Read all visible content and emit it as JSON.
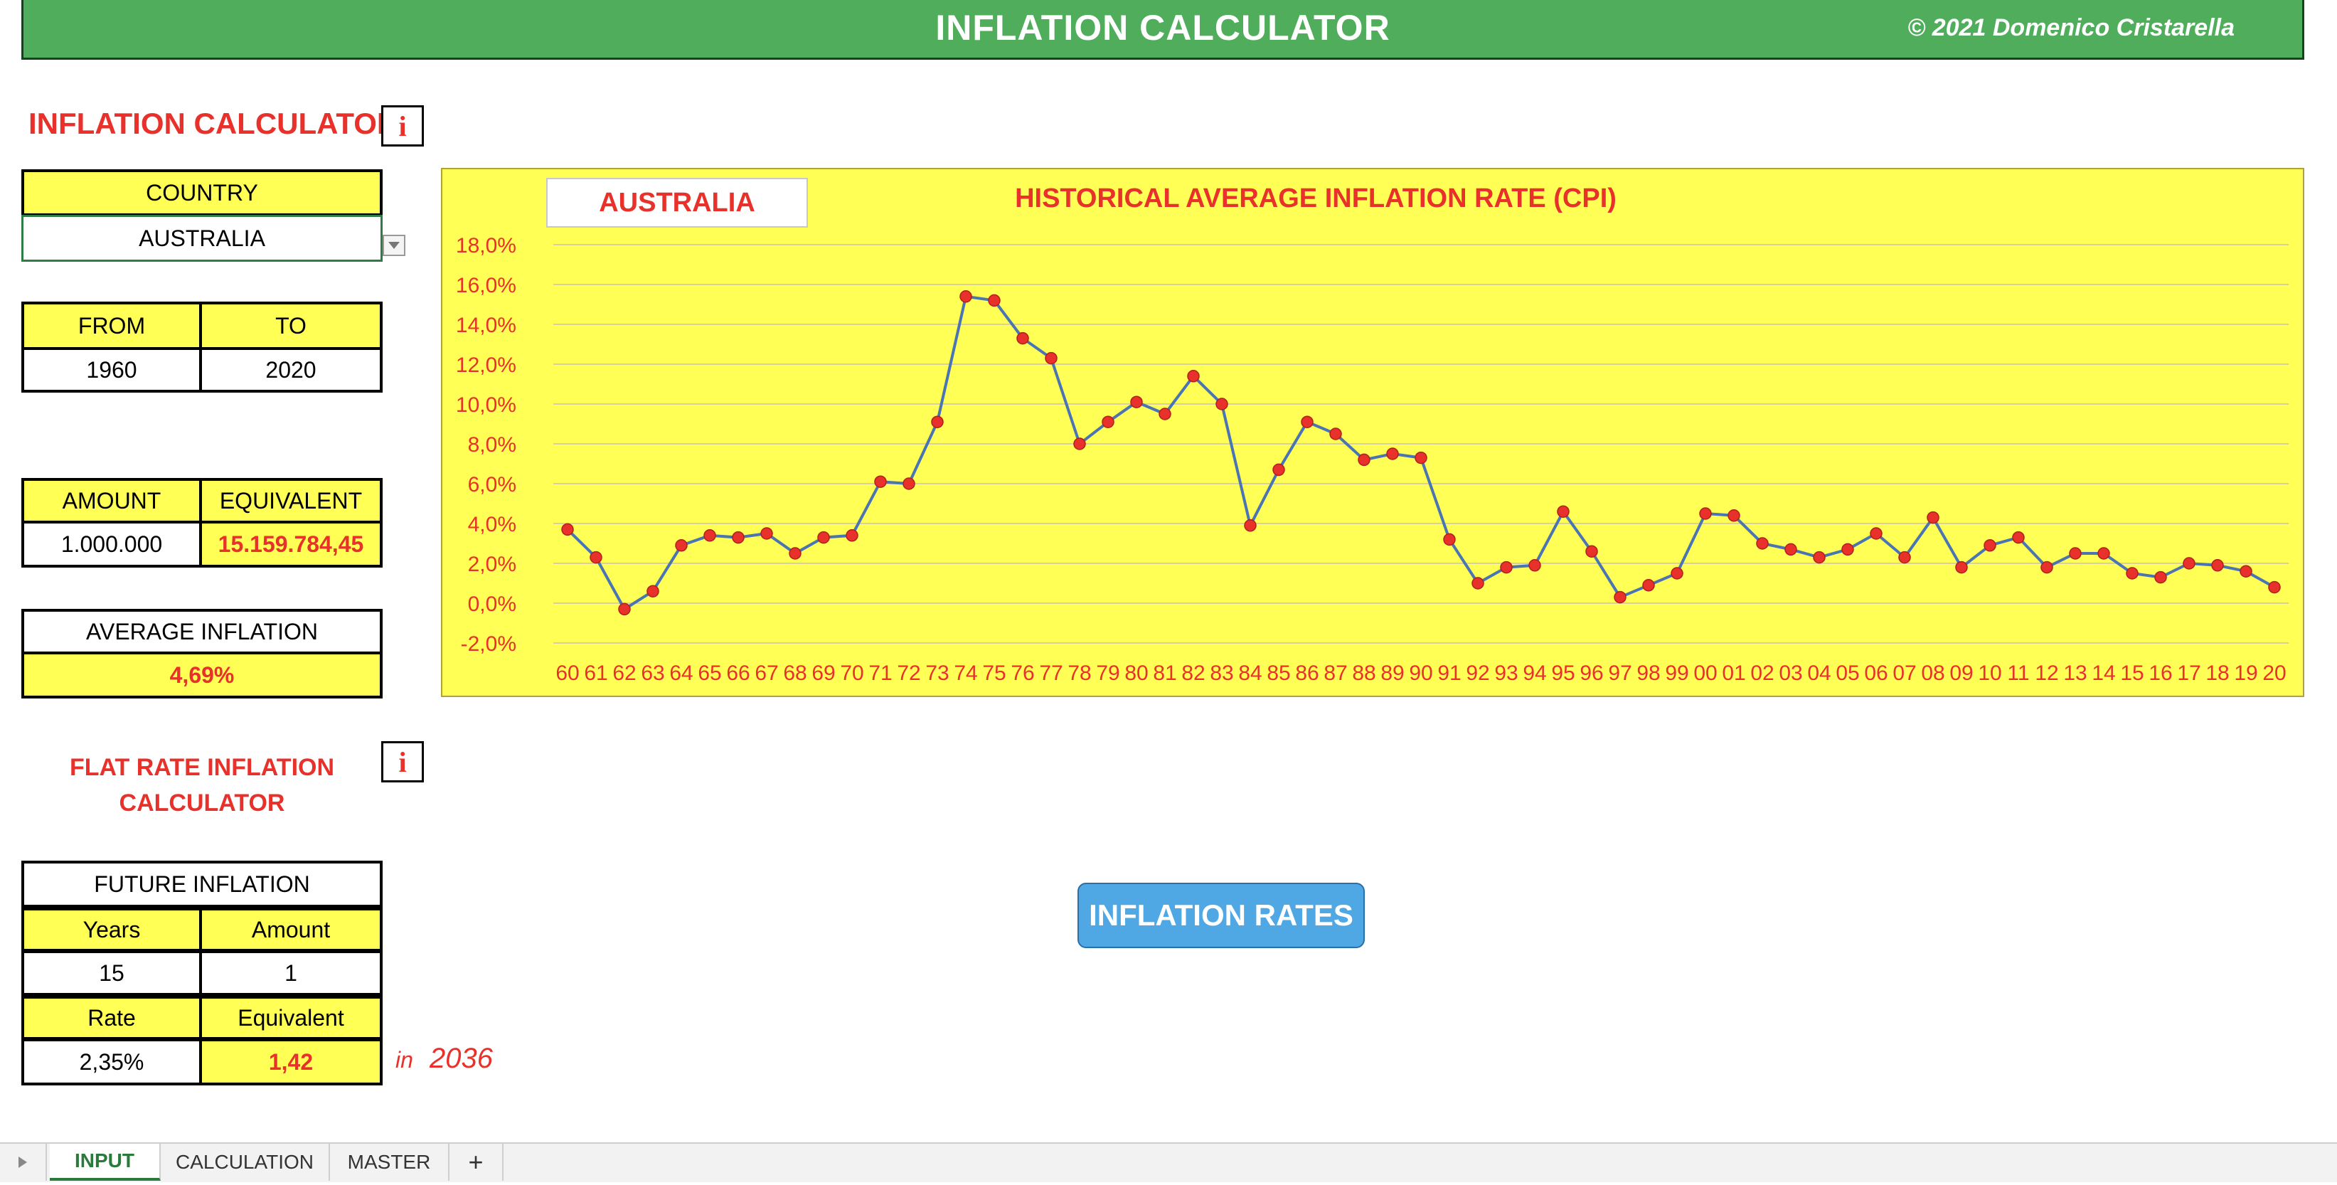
{
  "banner": {
    "title": "INFLATION CALCULATOR",
    "copyright": "© 2021 Domenico Cristarella"
  },
  "calculator": {
    "heading": "INFLATION CALCULATOR",
    "info_icon": "i",
    "country_label": "COUNTRY",
    "country_value": "AUSTRALIA",
    "from_label": "FROM",
    "to_label": "TO",
    "from_value": "1960",
    "to_value": "2020",
    "amount_label": "AMOUNT",
    "equivalent_label": "EQUIVALENT",
    "amount_value": "1.000.000",
    "equivalent_value": "15.159.784,45",
    "avg_label": "AVERAGE INFLATION",
    "avg_value": "4,69%"
  },
  "flat": {
    "heading_line1": "FLAT RATE INFLATION",
    "heading_line2": "CALCULATOR",
    "info_icon": "i",
    "future_label": "FUTURE INFLATION",
    "years_label": "Years",
    "amount_label": "Amount",
    "years_value": "15",
    "amount_value": "1",
    "rate_label": "Rate",
    "equivalent_label": "Equivalent",
    "rate_value": "2,35%",
    "equivalent_value": "1,42",
    "in_label": "in",
    "in_year": "2036"
  },
  "rates_button": "INFLATION RATES",
  "tabs": [
    "INPUT",
    "CALCULATION",
    "MASTER",
    "+"
  ],
  "colors": {
    "banner": "#50ad5b",
    "chart_bg": "#ffff55",
    "accent_red": "#e8312b",
    "line": "#4a74b4",
    "button": "#4fa7e4"
  },
  "icons": {
    "dropdown": "chevron-down-icon",
    "sheet_nav": "triangle-right-icon"
  },
  "chart_data": {
    "type": "line",
    "title": "HISTORICAL AVERAGE INFLATION RATE (CPI)",
    "country_label": "AUSTRALIA",
    "x": [
      "60",
      "61",
      "62",
      "63",
      "64",
      "65",
      "66",
      "67",
      "68",
      "69",
      "70",
      "71",
      "72",
      "73",
      "74",
      "75",
      "76",
      "77",
      "78",
      "79",
      "80",
      "81",
      "82",
      "83",
      "84",
      "85",
      "86",
      "87",
      "88",
      "89",
      "90",
      "91",
      "92",
      "93",
      "94",
      "95",
      "96",
      "97",
      "98",
      "99",
      "00",
      "01",
      "02",
      "03",
      "04",
      "05",
      "06",
      "07",
      "08",
      "09",
      "10",
      "11",
      "12",
      "13",
      "14",
      "15",
      "16",
      "17",
      "18",
      "19",
      "20"
    ],
    "series": [
      {
        "values": [
          3.7,
          2.3,
          -0.3,
          0.6,
          2.9,
          3.4,
          3.3,
          3.5,
          2.5,
          3.3,
          3.4,
          6.1,
          6.0,
          9.1,
          15.4,
          15.2,
          13.3,
          12.3,
          8.0,
          9.1,
          10.1,
          9.5,
          11.4,
          10.0,
          3.9,
          6.7,
          9.1,
          8.5,
          7.2,
          7.5,
          7.3,
          3.2,
          1.0,
          1.8,
          1.9,
          4.6,
          2.6,
          0.3,
          0.9,
          1.5,
          4.5,
          4.4,
          3.0,
          2.7,
          2.3,
          2.7,
          3.5,
          2.3,
          4.3,
          1.8,
          2.9,
          3.3,
          1.8,
          2.5,
          2.5,
          1.5,
          1.3,
          2.0,
          1.9,
          1.6,
          0.8
        ]
      }
    ],
    "y_ticks": [
      "18,0%",
      "16,0%",
      "14,0%",
      "12,0%",
      "10,0%",
      "8,0%",
      "6,0%",
      "4,0%",
      "2,0%",
      "0,0%",
      "-2,0%"
    ],
    "ylim": [
      -2,
      18
    ],
    "grid": true,
    "legend": "none"
  }
}
